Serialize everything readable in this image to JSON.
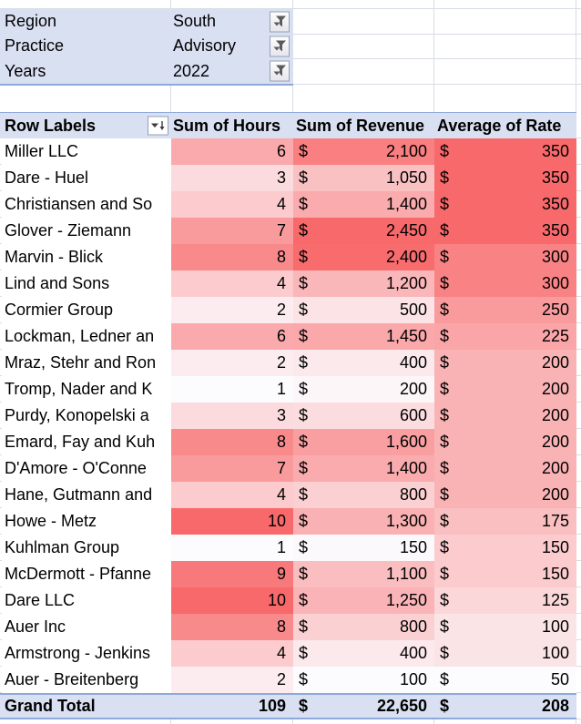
{
  "filters": [
    {
      "label": "Region",
      "value": "South"
    },
    {
      "label": "Practice",
      "value": "Advisory"
    },
    {
      "label": "Years",
      "value": "2022"
    }
  ],
  "pivot": {
    "headers": {
      "row_labels": "Row Labels",
      "hours": "Sum of Hours",
      "revenue": "Sum of Revenue",
      "rate": "Average of Rate"
    },
    "currency_symbol": "$",
    "rows": [
      {
        "label": "Miller LLC",
        "hours": 6,
        "revenue": 2100,
        "rate": 350
      },
      {
        "label": "Dare - Huel",
        "hours": 3,
        "revenue": 1050,
        "rate": 350
      },
      {
        "label": "Christiansen and So",
        "hours": 4,
        "revenue": 1400,
        "rate": 350
      },
      {
        "label": "Glover - Ziemann",
        "hours": 7,
        "revenue": 2450,
        "rate": 350
      },
      {
        "label": "Marvin - Blick",
        "hours": 8,
        "revenue": 2400,
        "rate": 300
      },
      {
        "label": "Lind and Sons",
        "hours": 4,
        "revenue": 1200,
        "rate": 300
      },
      {
        "label": "Cormier Group",
        "hours": 2,
        "revenue": 500,
        "rate": 250
      },
      {
        "label": "Lockman, Ledner an",
        "hours": 6,
        "revenue": 1450,
        "rate": 225
      },
      {
        "label": "Mraz, Stehr and Ron",
        "hours": 2,
        "revenue": 400,
        "rate": 200
      },
      {
        "label": "Tromp, Nader and K",
        "hours": 1,
        "revenue": 200,
        "rate": 200
      },
      {
        "label": "Purdy, Konopelski a",
        "hours": 3,
        "revenue": 600,
        "rate": 200
      },
      {
        "label": "Emard, Fay and Kuh",
        "hours": 8,
        "revenue": 1600,
        "rate": 200
      },
      {
        "label": "D'Amore - O'Conne",
        "hours": 7,
        "revenue": 1400,
        "rate": 200
      },
      {
        "label": "Hane, Gutmann and",
        "hours": 4,
        "revenue": 800,
        "rate": 200
      },
      {
        "label": "Howe - Metz",
        "hours": 10,
        "revenue": 1300,
        "rate": 175
      },
      {
        "label": "Kuhlman Group",
        "hours": 1,
        "revenue": 150,
        "rate": 150
      },
      {
        "label": "McDermott - Pfanne",
        "hours": 9,
        "revenue": 1100,
        "rate": 150
      },
      {
        "label": "Dare LLC",
        "hours": 10,
        "revenue": 1250,
        "rate": 125
      },
      {
        "label": "Auer Inc",
        "hours": 8,
        "revenue": 800,
        "rate": 100
      },
      {
        "label": "Armstrong - Jenkins",
        "hours": 4,
        "revenue": 400,
        "rate": 100
      },
      {
        "label": "Auer - Breitenberg",
        "hours": 2,
        "revenue": 100,
        "rate": 50
      }
    ],
    "grand_total": {
      "label": "Grand Total",
      "hours": 109,
      "revenue": 22650,
      "rate": 208
    }
  },
  "colors": {
    "scale_min": "#FCFCFF",
    "scale_max": "#F8696B",
    "band_fill": "#D9E0F2",
    "band_border": "#8EA9DB",
    "gridline": "#D8DCE6"
  }
}
